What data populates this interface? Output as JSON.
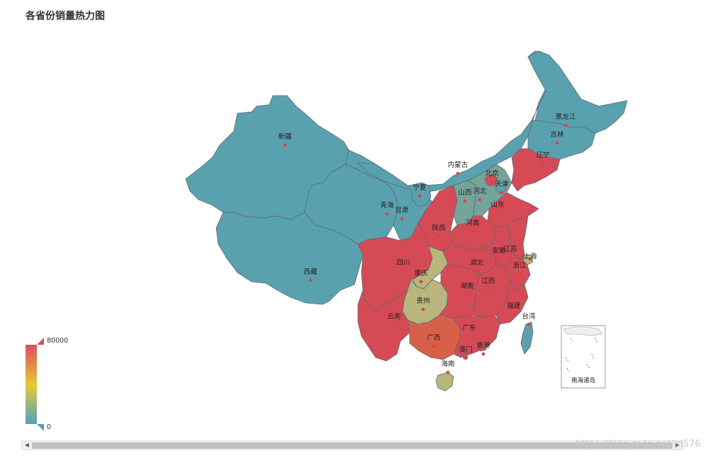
{
  "title": "各省份销量热力图",
  "visual_map": {
    "max_label": "80000",
    "min_label": "0",
    "colors": [
      "#d94e5d",
      "#eac736",
      "#50a3ba"
    ]
  },
  "colors": {
    "low": "#5aa1b0",
    "mid": "#74a39a",
    "high": "#d64a56",
    "yellowish": "#b8b57d",
    "orange": "#d86048"
  },
  "provinces": [
    {
      "name": "新疆",
      "level": "low"
    },
    {
      "name": "西藏",
      "level": "low"
    },
    {
      "name": "青海",
      "level": "low"
    },
    {
      "name": "甘肃",
      "level": "low"
    },
    {
      "name": "内蒙古",
      "level": "low"
    },
    {
      "name": "黑龙江",
      "level": "low"
    },
    {
      "name": "吉林",
      "level": "low"
    },
    {
      "name": "辽宁",
      "level": "high"
    },
    {
      "name": "宁夏",
      "level": "low"
    },
    {
      "name": "陕西",
      "level": "high"
    },
    {
      "name": "山西",
      "level": "mid"
    },
    {
      "name": "河北",
      "level": "mid"
    },
    {
      "name": "北京",
      "level": "high"
    },
    {
      "name": "天津",
      "level": "low"
    },
    {
      "name": "山东",
      "level": "high"
    },
    {
      "name": "河南",
      "level": "high"
    },
    {
      "name": "四川",
      "level": "high"
    },
    {
      "name": "重庆",
      "level": "yellowish"
    },
    {
      "name": "贵州",
      "level": "yellowish"
    },
    {
      "name": "云南",
      "level": "high"
    },
    {
      "name": "广西",
      "level": "orange"
    },
    {
      "name": "广东",
      "level": "high"
    },
    {
      "name": "湖南",
      "level": "high"
    },
    {
      "name": "湖北",
      "level": "high"
    },
    {
      "name": "江西",
      "level": "high"
    },
    {
      "name": "安徽",
      "level": "high"
    },
    {
      "name": "江苏",
      "level": "high"
    },
    {
      "name": "上海",
      "level": "yellowish"
    },
    {
      "name": "浙江",
      "level": "high"
    },
    {
      "name": "福建",
      "level": "high"
    },
    {
      "name": "台湾",
      "level": "low"
    },
    {
      "name": "海南",
      "level": "yellowish"
    },
    {
      "name": "香港",
      "level": "high"
    },
    {
      "name": "澳门",
      "level": "high"
    }
  ],
  "inset_label": "南海诸岛",
  "watermark": "https://blog.csdn.net/m576"
}
